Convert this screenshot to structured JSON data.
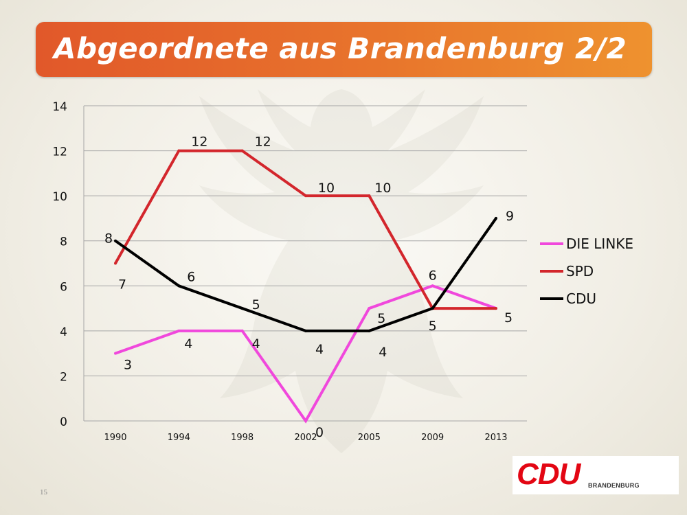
{
  "slide": {
    "title": "Abgeordnete aus Brandenburg 2/2",
    "page_number": "15"
  },
  "logo": {
    "main": "CDU",
    "sub": "BRANDENBURG"
  },
  "colors": {
    "die_linke": "#f048dc",
    "spd": "#d3262c",
    "cdu": "#000000",
    "grid": "#a6a6a6",
    "title_bar_start": "#e1582a",
    "title_bar_end": "#ee922f",
    "logo_red": "#e30613"
  },
  "chart_data": {
    "type": "line",
    "title": "",
    "xlabel": "",
    "ylabel": "",
    "categories": [
      "1990",
      "1994",
      "1998",
      "2002",
      "2005",
      "2009",
      "2013"
    ],
    "ylim": [
      0,
      14
    ],
    "yticks": [
      0,
      2,
      4,
      6,
      8,
      10,
      12,
      14
    ],
    "grid": true,
    "legend_position": "right",
    "series": [
      {
        "name": "DIE LINKE",
        "color": "#f048dc",
        "values": [
          3,
          4,
          4,
          0,
          5,
          6,
          5
        ],
        "data_labels": [
          "3",
          "4",
          "4",
          "0",
          "5",
          "6",
          "5"
        ]
      },
      {
        "name": "SPD",
        "color": "#d3262c",
        "values": [
          7,
          12,
          12,
          10,
          10,
          5,
          5
        ],
        "data_labels": [
          "7",
          "12",
          "12",
          "10",
          "10",
          "5",
          "5"
        ]
      },
      {
        "name": "CDU",
        "color": "#000000",
        "values": [
          8,
          6,
          5,
          4,
          4,
          5,
          9
        ],
        "data_labels": [
          "8",
          "6",
          "5",
          "4",
          "4",
          "5",
          "9"
        ]
      }
    ]
  }
}
